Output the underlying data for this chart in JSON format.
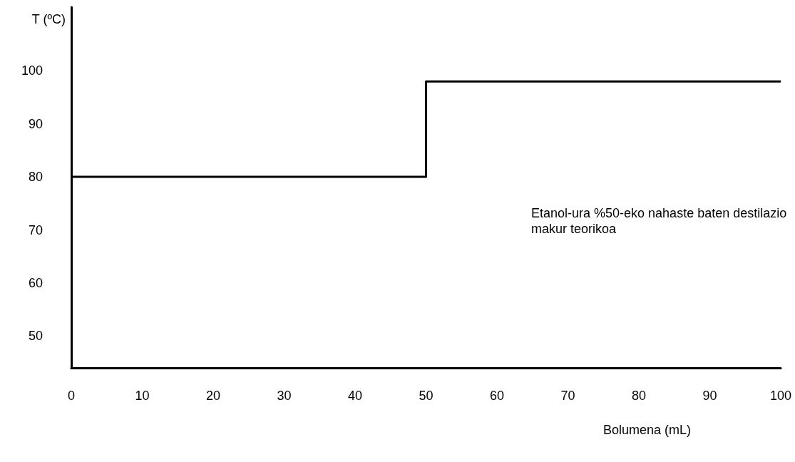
{
  "chart_data": {
    "type": "step",
    "xlabel": "Bolumena (mL)",
    "ylabel": "T (ºC)",
    "x": [
      0,
      50,
      100
    ],
    "series": [
      {
        "color": "#000000",
        "values": [
          80,
          98,
          98
        ]
      }
    ],
    "xlim": [
      0,
      100
    ],
    "xticks": [
      0,
      10,
      20,
      30,
      40,
      50,
      60,
      70,
      80,
      90,
      100
    ],
    "ylim": [
      44,
      112
    ],
    "yticks": [
      50,
      60,
      70,
      80,
      90,
      100
    ],
    "annotations": [
      "Etanol-ura %50-eko nahaste baten destilazio makur teorikoa"
    ],
    "grid": false,
    "marker": "none",
    "line_style": "solid"
  }
}
